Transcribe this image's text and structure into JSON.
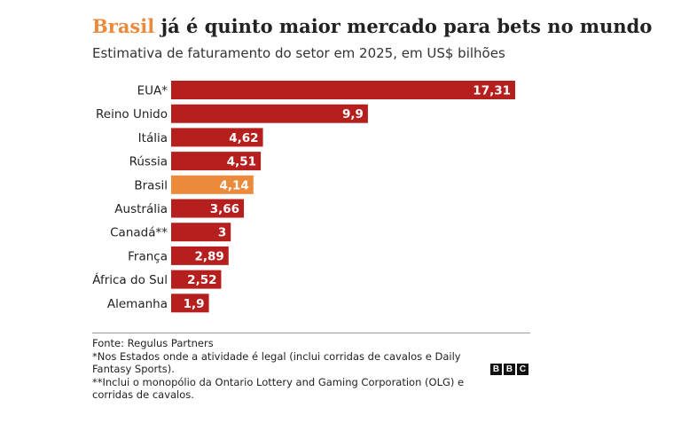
{
  "title": {
    "highlight": "Brasil",
    "rest": " já é quinto maior mercado para bets no mundo"
  },
  "subtitle": "Estimativa de faturamento do setor em 2025, em US$ bilhões",
  "chart_data": {
    "type": "bar",
    "orientation": "horizontal",
    "categories": [
      "EUA*",
      "Reino Unido",
      "Itália",
      "Rússia",
      "Brasil",
      "Austrália",
      "Canadá**",
      "França",
      "África do Sul",
      "Alemanha"
    ],
    "values": [
      17.31,
      9.9,
      4.62,
      4.51,
      4.14,
      3.66,
      3,
      2.89,
      2.52,
      1.9
    ],
    "value_labels": [
      "17,31",
      "9,9",
      "4,62",
      "4,51",
      "4,14",
      "3,66",
      "3",
      "2,89",
      "2,52",
      "1,9"
    ],
    "highlight_category": "Brasil",
    "colors": {
      "bar": "#b5201f",
      "highlight": "#ec8a3c",
      "label": "#ffffff"
    },
    "xlim": [
      0,
      17.31
    ],
    "grid": false,
    "legend": "none"
  },
  "footer": {
    "source": "Fonte: Regulus Partners",
    "note1": "*Nos Estados onde a atividade é legal (inclui corridas de cavalos e Daily Fantasy Sports).",
    "note2": "**Inclui o monopólio da Ontario Lottery and Gaming Corporation (OLG) e corridas de cavalos."
  },
  "logo": {
    "letters": [
      "B",
      "B",
      "C"
    ]
  }
}
